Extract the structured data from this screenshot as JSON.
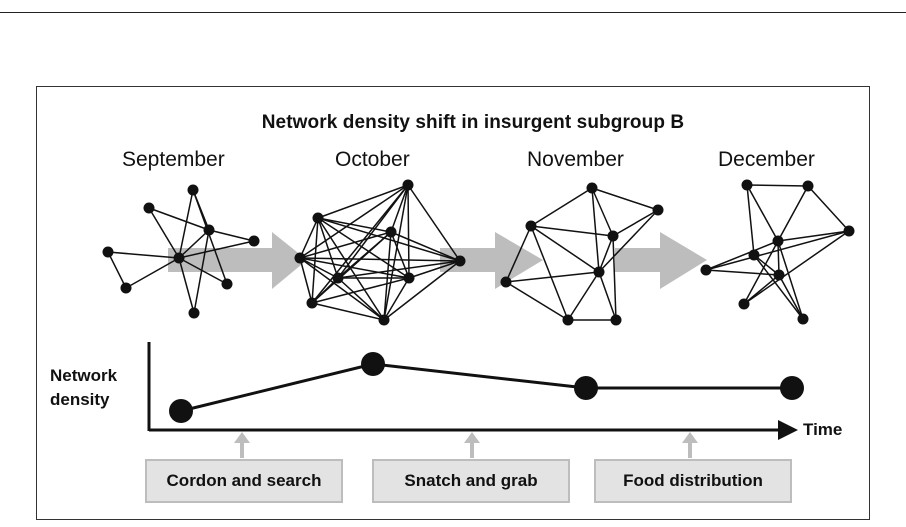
{
  "title": "Network density shift in insurgent subgroup B",
  "months": [
    "September",
    "October",
    "November",
    "December"
  ],
  "y_axis_label_line1": "Network",
  "y_axis_label_line2": "density",
  "x_axis_label": "Time",
  "operations": [
    "Cordon and search",
    "Snatch and grab",
    "Food distribution"
  ],
  "colors": {
    "arrow": "#bdbdbd",
    "box_fill": "#e3e3e3",
    "ink": "#111111"
  },
  "density_series": [
    {
      "month": "September",
      "relative_level": 0.0
    },
    {
      "month": "October",
      "relative_level": 1.0
    },
    {
      "month": "November",
      "relative_level": 0.47
    },
    {
      "month": "December",
      "relative_level": 0.47
    }
  ]
}
